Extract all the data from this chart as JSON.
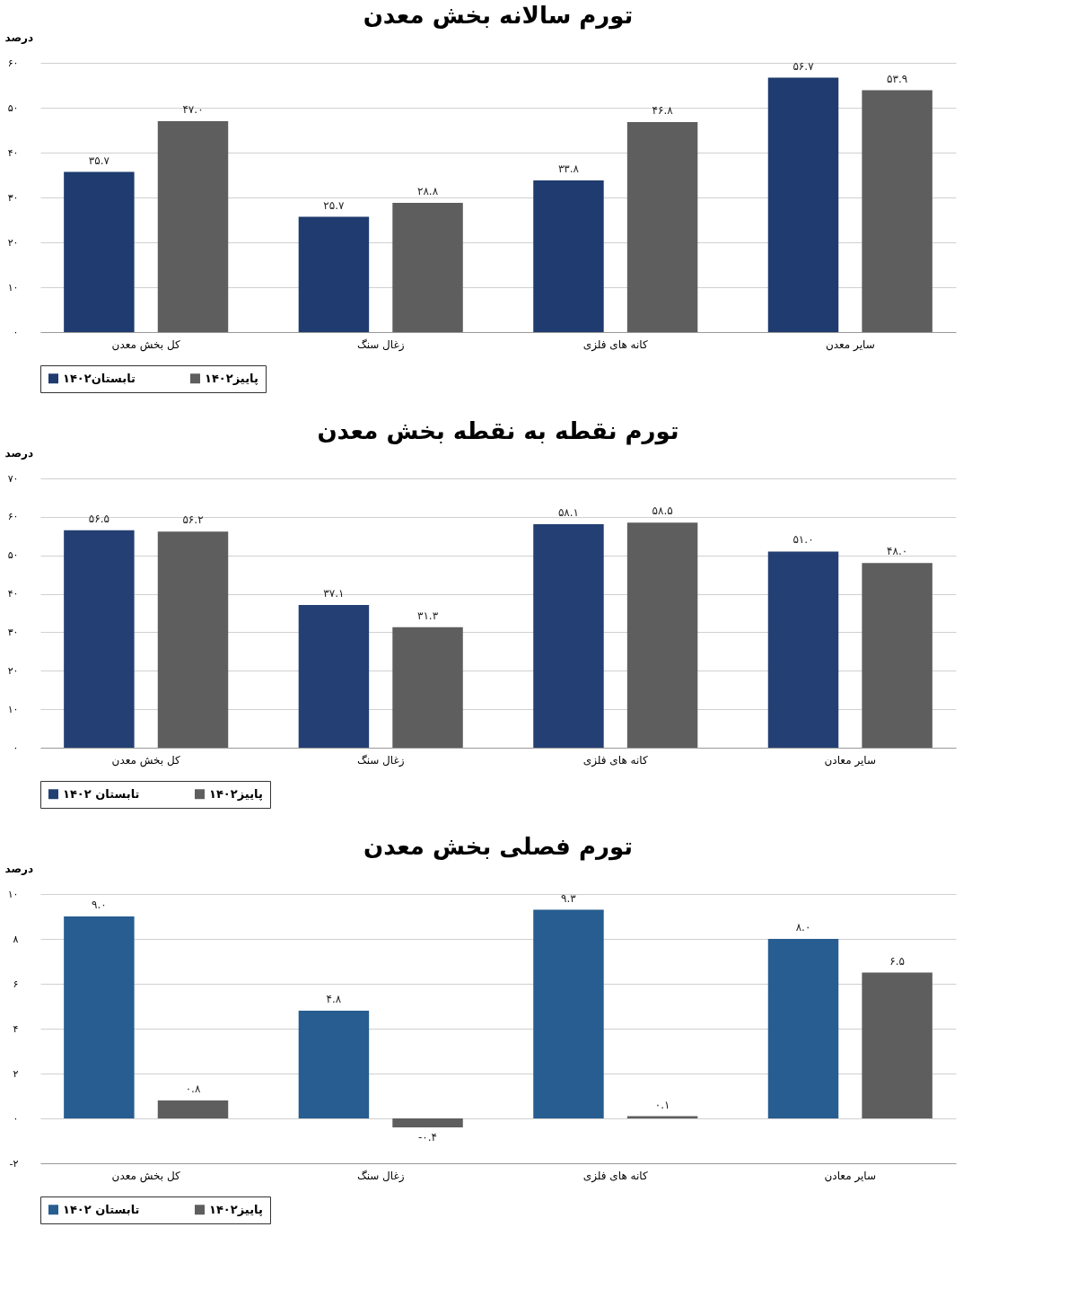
{
  "chart_data": [
    {
      "type": "bar",
      "title": "تورم سالانه بخش معدن",
      "ylabel": "درصد",
      "categories": [
        "کل بخش معدن",
        "زغال سنگ",
        "کانه های فلزی",
        "سایر معدن"
      ],
      "series": [
        {
          "name": "تابستان۱۴۰۲",
          "color": "#1f3b6f",
          "values": [
            35.7,
            25.7,
            33.8,
            56.7
          ],
          "value_labels": [
            "۳۵.۷",
            "۲۵.۷",
            "۳۳.۸",
            "۵۶.۷"
          ]
        },
        {
          "name": "پاییز۱۴۰۲",
          "color": "#5e5e5e",
          "values": [
            47.0,
            28.8,
            46.8,
            53.9
          ],
          "value_labels": [
            "۴۷.۰",
            "۲۸.۸",
            "۴۶.۸",
            "۵۳.۹"
          ]
        }
      ],
      "ylim": [
        0,
        60
      ],
      "yticks": [
        {
          "value": 0,
          "label": "۰"
        },
        {
          "value": 10,
          "label": "۱۰"
        },
        {
          "value": 20,
          "label": "۲۰"
        },
        {
          "value": 30,
          "label": "۳۰"
        },
        {
          "value": 40,
          "label": "۴۰"
        },
        {
          "value": 50,
          "label": "۵۰"
        },
        {
          "value": 60,
          "label": "۶۰"
        }
      ],
      "grid": "y",
      "legend": "bottom"
    },
    {
      "type": "bar",
      "title": "تورم نقطه به نقطه بخش معدن",
      "ylabel": "درصد",
      "categories": [
        "کل بخش معدن",
        "زغال سنگ",
        "کانه های فلزی",
        "سایر معادن"
      ],
      "series": [
        {
          "name": "تابستان ۱۴۰۲",
          "color": "#243f73",
          "values": [
            56.5,
            37.1,
            58.1,
            51.0
          ],
          "value_labels": [
            "۵۶.۵",
            "۳۷.۱",
            "۵۸.۱",
            "۵۱.۰"
          ]
        },
        {
          "name": "پاییز۱۴۰۲",
          "color": "#5e5e5e",
          "values": [
            56.2,
            31.3,
            58.5,
            48.0
          ],
          "value_labels": [
            "۵۶.۲",
            "۳۱.۳",
            "۵۸.۵",
            "۴۸.۰"
          ]
        }
      ],
      "ylim": [
        0,
        70
      ],
      "yticks": [
        {
          "value": 0,
          "label": "۰"
        },
        {
          "value": 10,
          "label": "۱۰"
        },
        {
          "value": 20,
          "label": "۲۰"
        },
        {
          "value": 30,
          "label": "۳۰"
        },
        {
          "value": 40,
          "label": "۴۰"
        },
        {
          "value": 50,
          "label": "۵۰"
        },
        {
          "value": 60,
          "label": "۶۰"
        },
        {
          "value": 70,
          "label": "۷۰"
        }
      ],
      "grid": "y",
      "legend": "bottom"
    },
    {
      "type": "bar",
      "title": "تورم فصلی بخش معدن",
      "ylabel": "درصد",
      "categories": [
        "کل بخش معدن",
        "زغال سنگ",
        "کانه های فلزی",
        "سایر معادن"
      ],
      "series": [
        {
          "name": "تابستان ۱۴۰۲",
          "color": "#275d90",
          "values": [
            9.0,
            4.8,
            9.3,
            8.0
          ],
          "value_labels": [
            "۹.۰",
            "۴.۸",
            "۹.۳",
            "۸.۰"
          ]
        },
        {
          "name": "پاییز۱۴۰۲",
          "color": "#5e5e5e",
          "values": [
            0.8,
            -0.4,
            0.1,
            6.5
          ],
          "value_labels": [
            "۰.۸",
            "-۰.۴",
            "۰.۱",
            "۶.۵"
          ]
        }
      ],
      "ylim": [
        -2,
        10
      ],
      "yticks": [
        {
          "value": -2,
          "label": "-۲"
        },
        {
          "value": 0,
          "label": "۰"
        },
        {
          "value": 2,
          "label": "۲"
        },
        {
          "value": 4,
          "label": "۴"
        },
        {
          "value": 6,
          "label": "۶"
        },
        {
          "value": 8,
          "label": "۸"
        },
        {
          "value": 10,
          "label": "۱۰"
        }
      ],
      "grid": "y",
      "legend": "bottom"
    }
  ]
}
